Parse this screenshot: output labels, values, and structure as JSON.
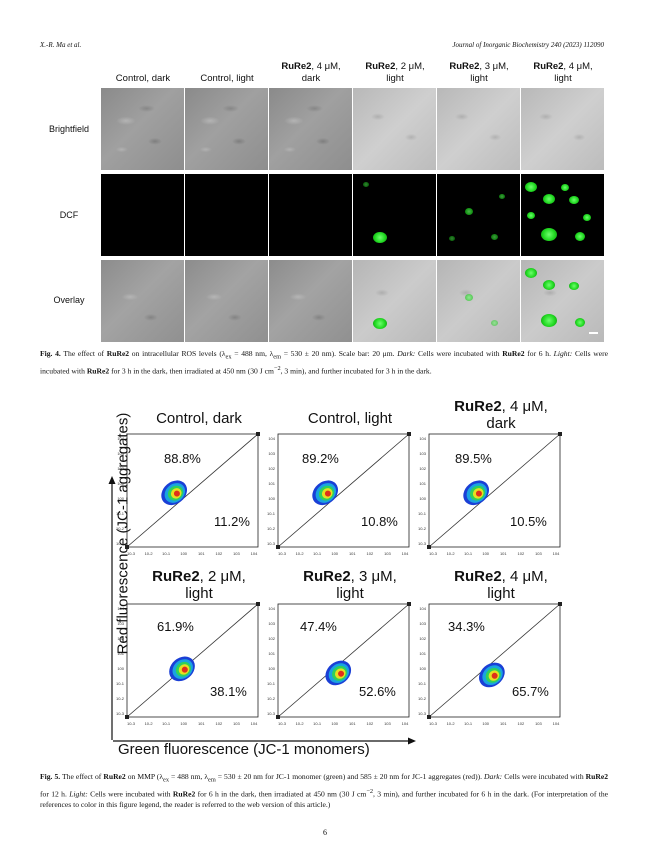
{
  "header": {
    "left": "X.-R. Ma et al.",
    "right": "Journal of Inorganic Biochemistry 240 (2023) 112090"
  },
  "fig4": {
    "columns": [
      {
        "bold": "",
        "text": "Control, dark",
        "line2": ""
      },
      {
        "bold": "",
        "text": "Control, light",
        "line2": ""
      },
      {
        "bold": "RuRe2",
        "text": ", 4 μM,",
        "line2": "dark"
      },
      {
        "bold": "RuRe2",
        "text": ", 2 μM,",
        "line2": "light"
      },
      {
        "bold": "RuRe2",
        "text": ", 3 μM,",
        "line2": "light"
      },
      {
        "bold": "RuRe2",
        "text": ", 4 μM,",
        "line2": "light"
      }
    ],
    "rows": [
      "Brightfield",
      "DCF",
      "Overlay"
    ],
    "caption": {
      "label": "Fig. 4.",
      "t1": " The effect of ",
      "b1": "RuRe2",
      "t2": " on intracellular ROS levels (λ",
      "sub_ex": "ex",
      "t3": " = 488 nm, λ",
      "sub_em": "em",
      "t4": " = 530 ± 20 nm). Scale bar: 20 μm. ",
      "i1": "Dark:",
      "t5": " Cells were incubated with ",
      "b2": "RuRe2",
      "t6": " for 6 h. ",
      "i2": "Light:",
      "t7": " Cells were incubated with ",
      "b3": "RuRe2",
      "t8": " for 3 h in the dark, then irradiated at 450 nm (30 J cm",
      "sup": "−2",
      "t9": ", 3 min), and further incubated for 3 h in the dark."
    }
  },
  "fig5": {
    "y_label": "Red fluorescence (JC-1 aggregates)",
    "x_label": "Green fluorescence (JC-1 monomers)",
    "tick_labels": [
      "10-3",
      "10-2",
      "10-1",
      "100",
      "101",
      "102",
      "103",
      "104"
    ],
    "panels": [
      {
        "bold": "",
        "line1": "Control, dark",
        "line2": "",
        "upper": "88.8%",
        "lower": "11.2%"
      },
      {
        "bold": "",
        "line1": "Control, light",
        "line2": "",
        "upper": "89.2%",
        "lower": "10.8%"
      },
      {
        "bold": "RuRe2",
        "line1": ", 4 μM,",
        "line2": "dark",
        "upper": "89.5%",
        "lower": "10.5%"
      },
      {
        "bold": "RuRe2",
        "line1": ", 2 μM,",
        "line2": "light",
        "upper": "61.9%",
        "lower": "38.1%"
      },
      {
        "bold": "RuRe2",
        "line1": ", 3 μM,",
        "line2": "light",
        "upper": "47.4%",
        "lower": "52.6%"
      },
      {
        "bold": "RuRe2",
        "line1": ", 4 μM,",
        "line2": "light",
        "upper": "34.3%",
        "lower": "65.7%"
      }
    ],
    "caption": {
      "label": "Fig. 5.",
      "t1": " The effect of ",
      "b1": "RuRe2",
      "t2": " on MMP (λ",
      "sub_ex": "ex",
      "t3": " = 488 nm, λ",
      "sub_em": "em",
      "t4": " = 530 ± 20 nm for JC-1 monomer (green) and 585 ± 20 nm for JC-1 aggregates (red)). ",
      "i1": "Dark:",
      "t5": " Cells were incubated with ",
      "b2": "RuRe2",
      "t6": " for 12 h. ",
      "i2": "Light:",
      "t7": " Cells were incubated with ",
      "b3": "RuRe2",
      "t8": " for 6 h in the dark, then irradiated at 450 nm (30 J cm",
      "sup": "−2",
      "t9": ", 3 min), and further incubated for 6 h in the dark. (For interpretation of the references to color in this figure legend, the reader is referred to the web version of this article.)"
    }
  },
  "page_number": "6"
}
